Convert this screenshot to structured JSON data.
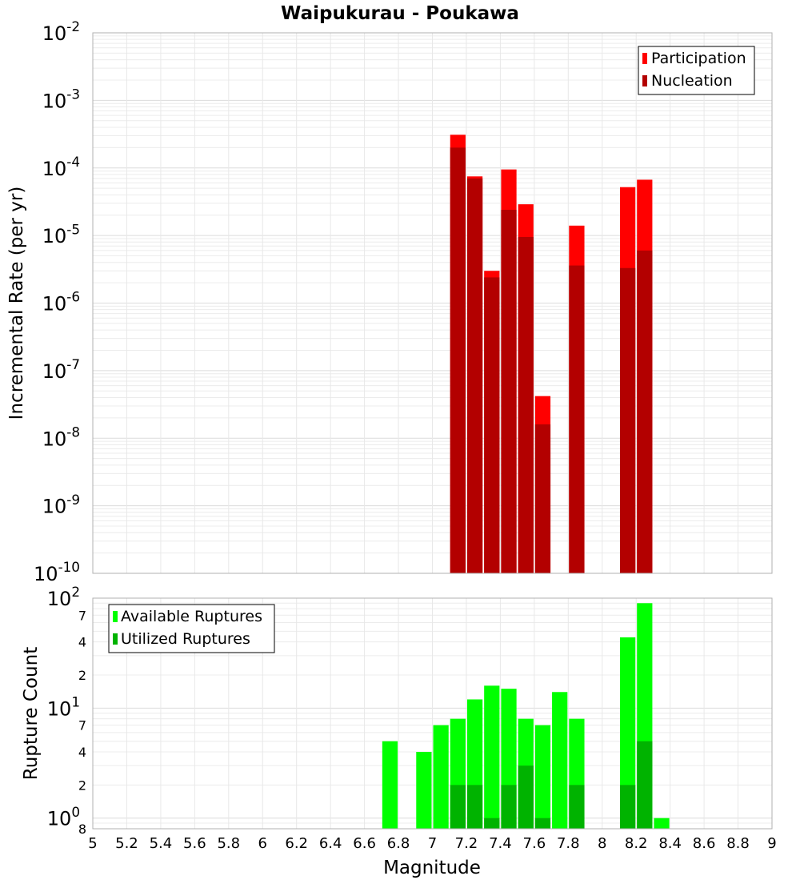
{
  "chart_data": [
    {
      "type": "bar",
      "title": "Waipukurau - Poukawa",
      "ylabel": "Incremental Rate (per yr)",
      "xlabel": "",
      "xlim": [
        5,
        9
      ],
      "ylim": [
        1e-10,
        0.01
      ],
      "yscale": "log",
      "grid": true,
      "legend_position": "top-right",
      "bin_width": 0.1,
      "y_tick_labels": [
        {
          "base": "10",
          "exp": "-2"
        },
        {
          "base": "10",
          "exp": "-3"
        },
        {
          "base": "10",
          "exp": "-4"
        },
        {
          "base": "10",
          "exp": "-5"
        },
        {
          "base": "10",
          "exp": "-6"
        },
        {
          "base": "10",
          "exp": "-7"
        },
        {
          "base": "10",
          "exp": "-8"
        },
        {
          "base": "10",
          "exp": "-9"
        },
        {
          "base": "10",
          "exp": "-10"
        }
      ],
      "series": [
        {
          "name": "Participation",
          "color": "#ff0000",
          "points": [
            [
              7.15,
              0.00031
            ],
            [
              7.25,
              7.5e-05
            ],
            [
              7.35,
              3e-06
            ],
            [
              7.45,
              9.5e-05
            ],
            [
              7.55,
              2.9e-05
            ],
            [
              7.65,
              4.2e-08
            ],
            [
              7.85,
              1.4e-05
            ],
            [
              8.15,
              5.2e-05
            ],
            [
              8.25,
              6.7e-05
            ]
          ]
        },
        {
          "name": "Nucleation",
          "color": "#b30000",
          "points": [
            [
              7.15,
              0.0002
            ],
            [
              7.25,
              7e-05
            ],
            [
              7.35,
              2.4e-06
            ],
            [
              7.45,
              2.4e-05
            ],
            [
              7.55,
              9.5e-06
            ],
            [
              7.65,
              1.6e-08
            ],
            [
              7.85,
              3.6e-06
            ],
            [
              8.15,
              3.3e-06
            ],
            [
              8.25,
              6e-06
            ]
          ]
        }
      ]
    },
    {
      "type": "bar",
      "title": "",
      "ylabel": "Rupture Count",
      "xlabel": "Magnitude",
      "xlim": [
        5,
        9
      ],
      "ylim": [
        0.8,
        100
      ],
      "yscale": "log",
      "grid": true,
      "legend_position": "top-left",
      "bin_width": 0.1,
      "x_ticks": [
        "5",
        "5.2",
        "5.4",
        "5.6",
        "5.8",
        "6",
        "6.2",
        "6.4",
        "6.6",
        "6.8",
        "7",
        "7.2",
        "7.4",
        "7.6",
        "7.8",
        "8",
        "8.2",
        "8.4",
        "8.6",
        "8.8",
        "9"
      ],
      "y_major_tick_labels": [
        {
          "value": 100,
          "base": "10",
          "exp": "2"
        },
        {
          "value": 10,
          "base": "10",
          "exp": "1"
        },
        {
          "value": 1,
          "base": "10",
          "exp": "0"
        }
      ],
      "y_minor_tick_labels": [
        {
          "value": 70,
          "label": "7"
        },
        {
          "value": 40,
          "label": "4"
        },
        {
          "value": 20,
          "label": "2"
        },
        {
          "value": 7,
          "label": "7"
        },
        {
          "value": 4,
          "label": "4"
        },
        {
          "value": 2,
          "label": "2"
        },
        {
          "value": 0.8,
          "label": "8"
        }
      ],
      "series": [
        {
          "name": "Available Ruptures",
          "color": "#00ff00",
          "points": [
            [
              6.75,
              5
            ],
            [
              6.95,
              4
            ],
            [
              7.05,
              7
            ],
            [
              7.15,
              8
            ],
            [
              7.25,
              12
            ],
            [
              7.35,
              16
            ],
            [
              7.45,
              15
            ],
            [
              7.55,
              8
            ],
            [
              7.65,
              7
            ],
            [
              7.75,
              14
            ],
            [
              7.85,
              8
            ],
            [
              8.15,
              44
            ],
            [
              8.25,
              90
            ],
            [
              8.35,
              1
            ]
          ]
        },
        {
          "name": "Utilized Ruptures",
          "color": "#00b300",
          "points": [
            [
              7.15,
              2
            ],
            [
              7.25,
              2
            ],
            [
              7.35,
              1
            ],
            [
              7.45,
              2
            ],
            [
              7.55,
              3
            ],
            [
              7.65,
              1
            ],
            [
              7.85,
              2
            ],
            [
              8.15,
              2
            ],
            [
              8.25,
              5
            ]
          ]
        }
      ]
    }
  ]
}
